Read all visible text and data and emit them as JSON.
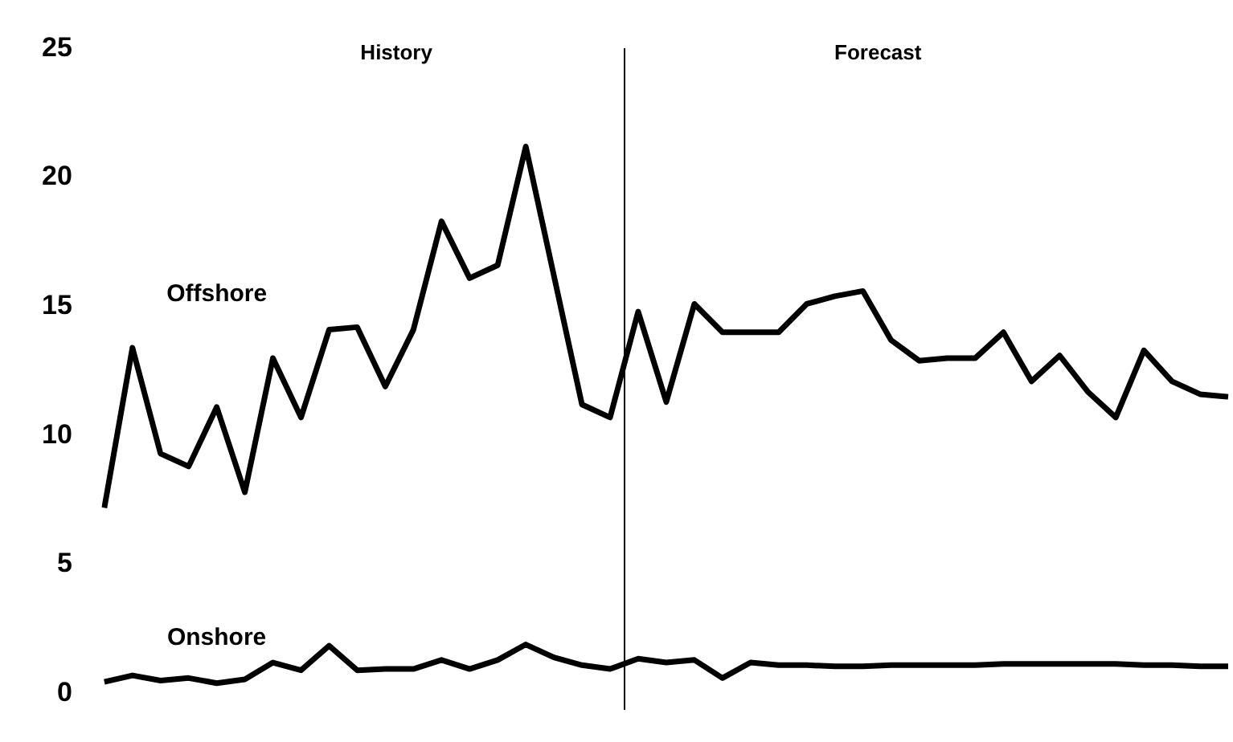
{
  "chart_data": {
    "type": "line",
    "categories": [
      null,
      null,
      null,
      null,
      null,
      null,
      null,
      null,
      null,
      null,
      null,
      null,
      null,
      null,
      null,
      null,
      null,
      null,
      null,
      null,
      null,
      null,
      null,
      null,
      null,
      null,
      null,
      null,
      null,
      null,
      null,
      null,
      null,
      null,
      null,
      null,
      null,
      null,
      null,
      null,
      null
    ],
    "series": [
      {
        "name": "Offshore",
        "color": "#000000",
        "values": [
          7.2,
          13.4,
          9.3,
          8.8,
          11.1,
          7.8,
          13.0,
          10.7,
          14.1,
          14.2,
          11.9,
          14.1,
          18.3,
          16.1,
          16.6,
          21.2,
          16.2,
          11.2,
          10.7,
          14.8,
          11.3,
          15.1,
          14.0,
          14.0,
          14.0,
          15.1,
          15.4,
          15.6,
          13.7,
          12.9,
          13.0,
          13.0,
          14.0,
          12.1,
          13.1,
          11.7,
          10.7,
          13.3,
          12.1,
          11.6,
          11.5
        ]
      },
      {
        "name": "Onshore",
        "color": "#000000",
        "values": [
          0.45,
          0.7,
          0.5,
          0.6,
          0.4,
          0.55,
          1.2,
          0.9,
          1.85,
          0.9,
          0.95,
          0.95,
          1.3,
          0.95,
          1.3,
          1.9,
          1.4,
          1.1,
          0.95,
          1.35,
          1.2,
          1.3,
          0.6,
          1.2,
          1.1,
          1.1,
          1.05,
          1.05,
          1.1,
          1.1,
          1.1,
          1.1,
          1.15,
          1.15,
          1.15,
          1.15,
          1.15,
          1.1,
          1.1,
          1.05,
          1.05
        ]
      }
    ],
    "ylim": [
      0,
      25
    ],
    "yticks": [
      0,
      5,
      10,
      15,
      20,
      25
    ],
    "grid": false,
    "legend": false,
    "marker": "none",
    "line_style": "solid",
    "annotations": [
      "History",
      "Forecast"
    ]
  }
}
